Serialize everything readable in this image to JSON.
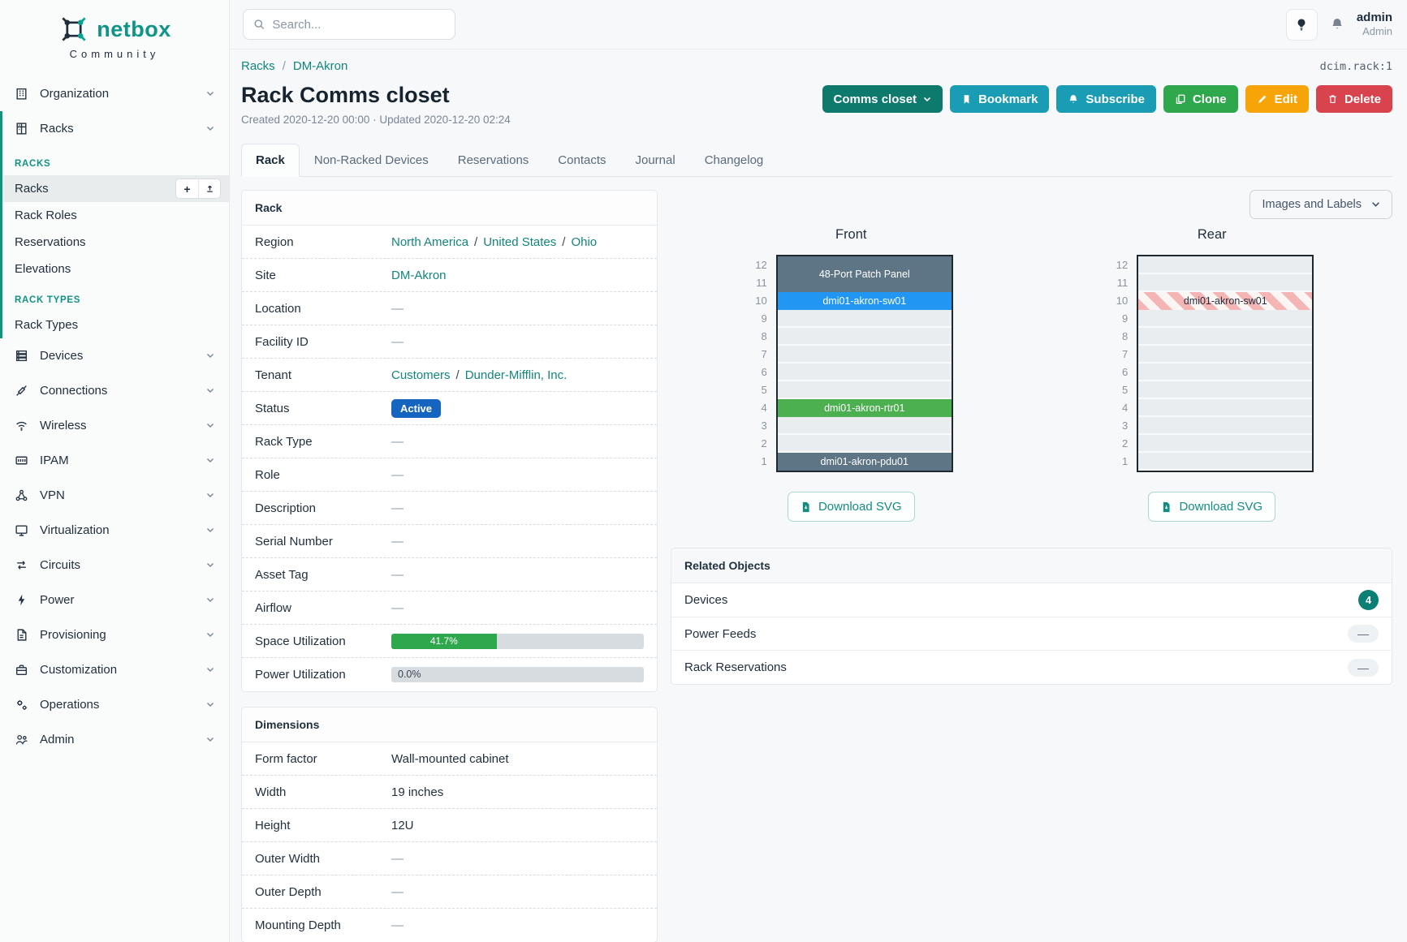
{
  "ui": {
    "slash": "/"
  },
  "brand": {
    "name": "netbox",
    "subtitle": "Community"
  },
  "topbar": {
    "search_placeholder": "Search...",
    "user_name": "admin",
    "user_role": "Admin"
  },
  "breadcrumb": {
    "racks": "Racks",
    "current": "DM-Akron",
    "object_id": "dcim.rack:1"
  },
  "page": {
    "title": "Rack Comms closet",
    "meta": "Created 2020-12-20 00:00 · Updated 2020-12-20 02:24"
  },
  "actions": {
    "name_menu": "Comms closet",
    "bookmark": "Bookmark",
    "subscribe": "Subscribe",
    "clone": "Clone",
    "edit": "Edit",
    "delete": "Delete"
  },
  "tabs": [
    "Rack",
    "Non-Racked Devices",
    "Reservations",
    "Contacts",
    "Journal",
    "Changelog"
  ],
  "sidebar": {
    "organization": "Organization",
    "racks_menu": "Racks",
    "add_label": "+",
    "sections": [
      {
        "header": "RACKS",
        "items": [
          "Racks",
          "Rack Roles",
          "Reservations",
          "Elevations"
        ]
      },
      {
        "header": "RACK TYPES",
        "items": [
          "Rack Types"
        ]
      }
    ],
    "items": [
      "Devices",
      "Connections",
      "Wireless",
      "IPAM",
      "VPN",
      "Virtualization",
      "Circuits",
      "Power",
      "Provisioning",
      "Customization",
      "Operations",
      "Admin"
    ]
  },
  "rack_panel": {
    "title": "Rack",
    "rows": {
      "region": {
        "label": "Region",
        "links": [
          "North America",
          "United States",
          "Ohio"
        ]
      },
      "site": {
        "label": "Site",
        "link": "DM-Akron"
      },
      "location": {
        "label": "Location",
        "value": "—"
      },
      "facility_id": {
        "label": "Facility ID",
        "value": "—"
      },
      "tenant": {
        "label": "Tenant",
        "links": [
          "Customers",
          "Dunder-Mifflin, Inc."
        ]
      },
      "status": {
        "label": "Status",
        "badge": "Active"
      },
      "rack_type": {
        "label": "Rack Type",
        "value": "—"
      },
      "role": {
        "label": "Role",
        "value": "—"
      },
      "description": {
        "label": "Description",
        "value": "—"
      },
      "serial": {
        "label": "Serial Number",
        "value": "—"
      },
      "asset_tag": {
        "label": "Asset Tag",
        "value": "—"
      },
      "airflow": {
        "label": "Airflow",
        "value": "—"
      },
      "space": {
        "label": "Space Utilization",
        "percent": 41.7,
        "display": "41.7%"
      },
      "power": {
        "label": "Power Utilization",
        "percent": 0,
        "display": "0.0%"
      }
    }
  },
  "dimensions_panel": {
    "title": "Dimensions",
    "rows": {
      "form_factor": {
        "label": "Form factor",
        "value": "Wall-mounted cabinet"
      },
      "width": {
        "label": "Width",
        "value": "19 inches"
      },
      "height": {
        "label": "Height",
        "value": "12U"
      },
      "outer_width": {
        "label": "Outer Width",
        "value": "—"
      },
      "outer_depth": {
        "label": "Outer Depth",
        "value": "—"
      },
      "mounting_depth": {
        "label": "Mounting Depth",
        "value": "—"
      }
    }
  },
  "elevations": {
    "toggle_label": "Images and Labels",
    "download_label": "Download SVG",
    "units": [
      "12",
      "11",
      "10",
      "9",
      "8",
      "7",
      "6",
      "5",
      "4",
      "3",
      "2",
      "1"
    ],
    "front": {
      "title": "Front",
      "devices": [
        {
          "name": "48-Port Patch Panel",
          "units": "11-12",
          "color": "#5e7585"
        },
        {
          "name": "dmi01-akron-sw01",
          "units": "10",
          "color": "#2196f3"
        },
        {
          "name": "dmi01-akron-rtr01",
          "units": "4",
          "color": "#4caf50"
        },
        {
          "name": "dmi01-akron-pdu01",
          "units": "1",
          "color": "#5e7585"
        }
      ]
    },
    "rear": {
      "title": "Rear",
      "devices": [
        {
          "name": "dmi01-akron-sw01",
          "units": "10",
          "style": "striped"
        }
      ]
    }
  },
  "related_objects": {
    "title": "Related Objects",
    "rows": [
      {
        "label": "Devices",
        "count": "4"
      },
      {
        "label": "Power Feeds",
        "count": "—"
      },
      {
        "label": "Rack Reservations",
        "count": "—"
      }
    ]
  },
  "colors": {
    "brand_teal": "#0f9488",
    "link_teal": "#11867c",
    "status_active_blue": "#1565c0",
    "utilization_green": "#2fa84d",
    "button_info": "#1b9cb5",
    "button_success": "#2fa84d",
    "button_warning": "#f6a408",
    "button_danger": "#d9434e",
    "rack_slate": "#5e7585",
    "rack_blue": "#2196f3",
    "rack_green": "#4caf50"
  }
}
